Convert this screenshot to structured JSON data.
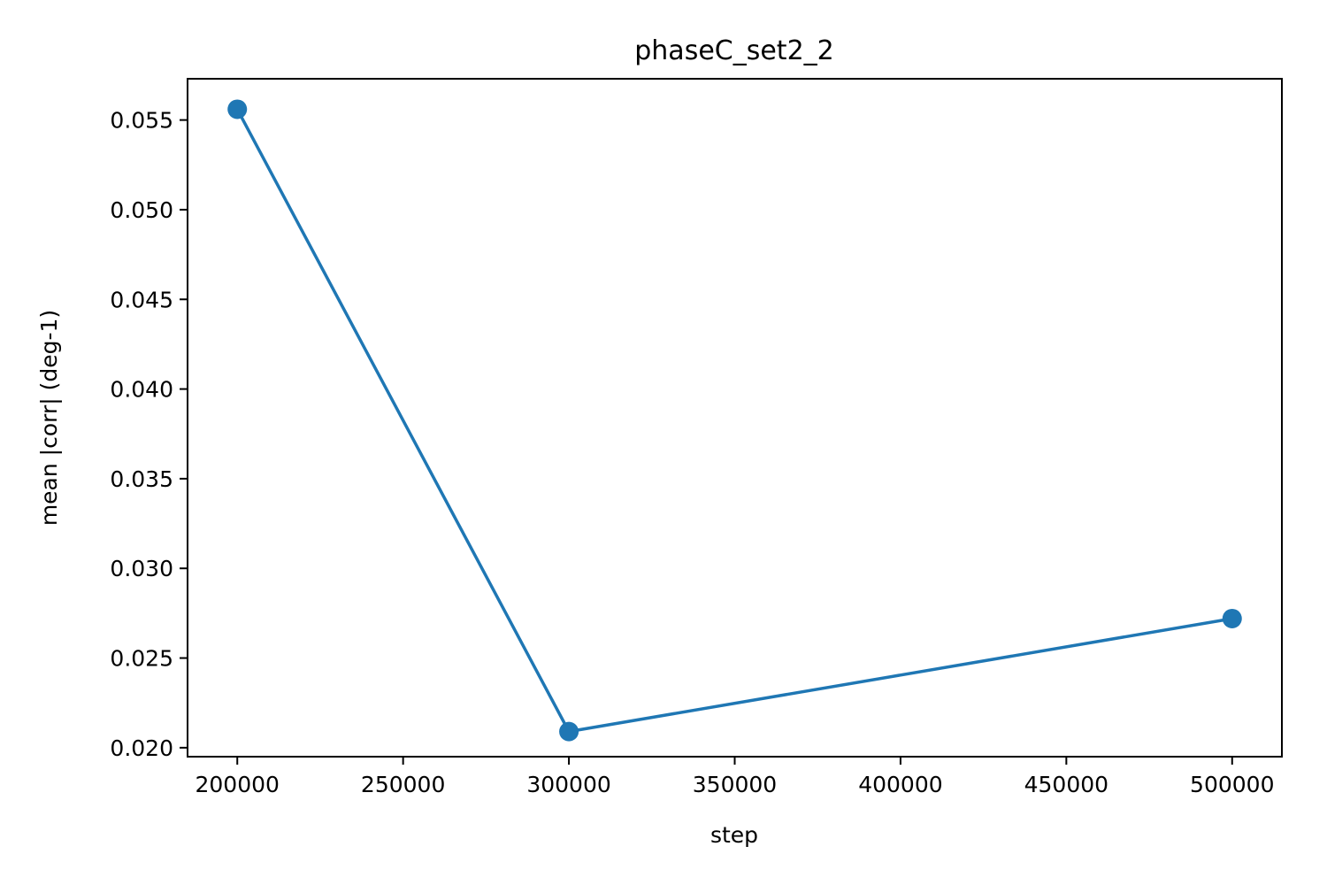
{
  "chart_data": {
    "type": "line",
    "title": "phaseC_set2_2",
    "xlabel": "step",
    "ylabel": "mean |corr| (deg-1)",
    "xlim": [
      185000,
      515000
    ],
    "ylim": [
      0.0195,
      0.0573
    ],
    "x_ticks": [
      200000,
      250000,
      300000,
      350000,
      400000,
      450000,
      500000
    ],
    "x_tick_labels": [
      "200000",
      "250000",
      "300000",
      "350000",
      "400000",
      "450000",
      "500000"
    ],
    "y_ticks": [
      0.02,
      0.025,
      0.03,
      0.035,
      0.04,
      0.045,
      0.05,
      0.055
    ],
    "y_tick_labels": [
      "0.020",
      "0.025",
      "0.030",
      "0.035",
      "0.040",
      "0.045",
      "0.050",
      "0.055"
    ],
    "grid": false,
    "series": [
      {
        "color": "#1f77b4",
        "marker": "circle",
        "x": [
          200000,
          300000,
          500000
        ],
        "y": [
          0.0556,
          0.0209,
          0.0272
        ]
      }
    ]
  }
}
